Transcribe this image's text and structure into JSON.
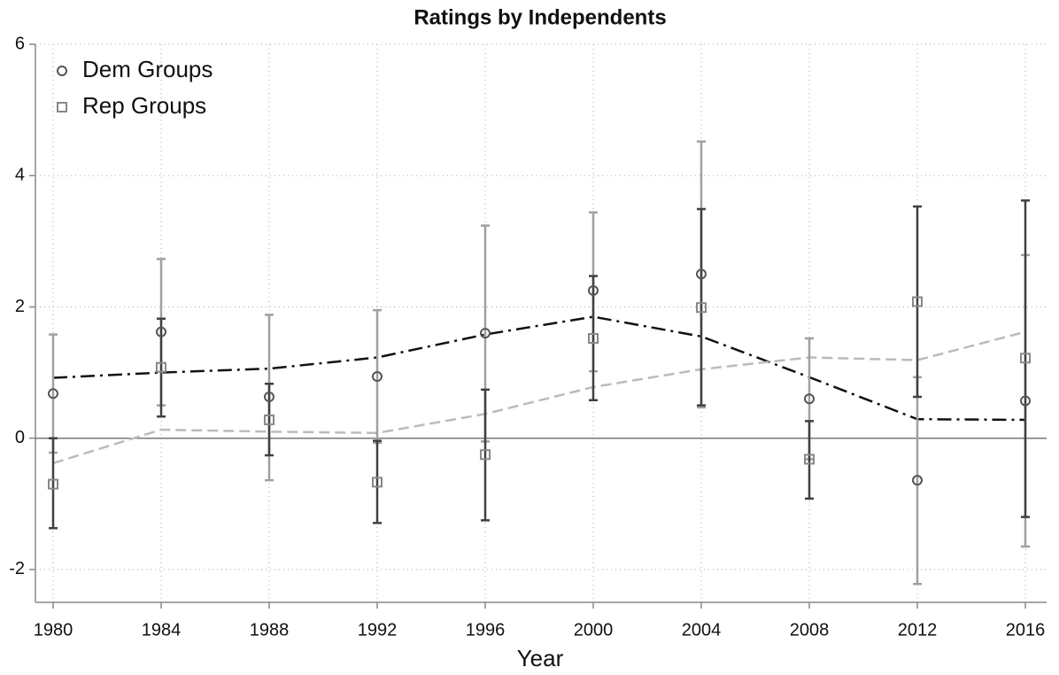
{
  "chart_data": {
    "type": "errorbar",
    "title": "Ratings by Independents",
    "xlabel": "Year",
    "x": [
      1980,
      1984,
      1988,
      1992,
      1996,
      2000,
      2004,
      2008,
      2012,
      2016
    ],
    "xlim": [
      1980,
      2016
    ],
    "xticks": [
      1980,
      1984,
      1988,
      1992,
      1996,
      2000,
      2004,
      2008,
      2012,
      2016
    ],
    "ylim": [
      -2.5,
      6
    ],
    "yticks": [
      -2,
      0,
      2,
      4,
      6
    ],
    "grid": true,
    "legend": "upper left",
    "series": [
      {
        "name": "Dem Groups",
        "marker": "circle",
        "color": "#555555",
        "ci_color": "#a0a0a0",
        "fit_color": "#111111",
        "fit_dash": "16 6 3 6",
        "values": [
          0.68,
          1.62,
          0.63,
          0.94,
          1.6,
          2.25,
          2.5,
          0.6,
          -0.64,
          0.57
        ],
        "ci_low": [
          -0.22,
          0.5,
          -0.64,
          -0.07,
          -0.05,
          1.02,
          0.47,
          -0.32,
          -2.22,
          -1.65
        ],
        "ci_high": [
          1.58,
          2.73,
          1.88,
          1.95,
          3.24,
          3.44,
          4.52,
          1.52,
          0.93,
          2.79
        ],
        "fit": [
          0.92,
          1.0,
          1.06,
          1.23,
          1.58,
          1.85,
          1.55,
          0.93,
          0.29,
          0.28
        ]
      },
      {
        "name": "Rep Groups",
        "marker": "square",
        "color": "#888888",
        "ci_color": "#404040",
        "fit_color": "#bbbbbb",
        "fit_dash": "12 6",
        "values": [
          -0.7,
          1.08,
          0.28,
          -0.67,
          -0.25,
          1.52,
          1.99,
          -0.32,
          2.08,
          1.22
        ],
        "ci_low": [
          -1.37,
          0.33,
          -0.26,
          -1.29,
          -1.25,
          0.58,
          0.5,
          -0.92,
          0.63,
          -1.2
        ],
        "ci_high": [
          0.0,
          1.82,
          0.83,
          -0.04,
          0.74,
          2.47,
          3.49,
          0.26,
          3.53,
          3.62
        ],
        "fit": [
          -0.38,
          0.13,
          0.1,
          0.08,
          0.37,
          0.78,
          1.05,
          1.23,
          1.19,
          1.62
        ]
      }
    ]
  }
}
